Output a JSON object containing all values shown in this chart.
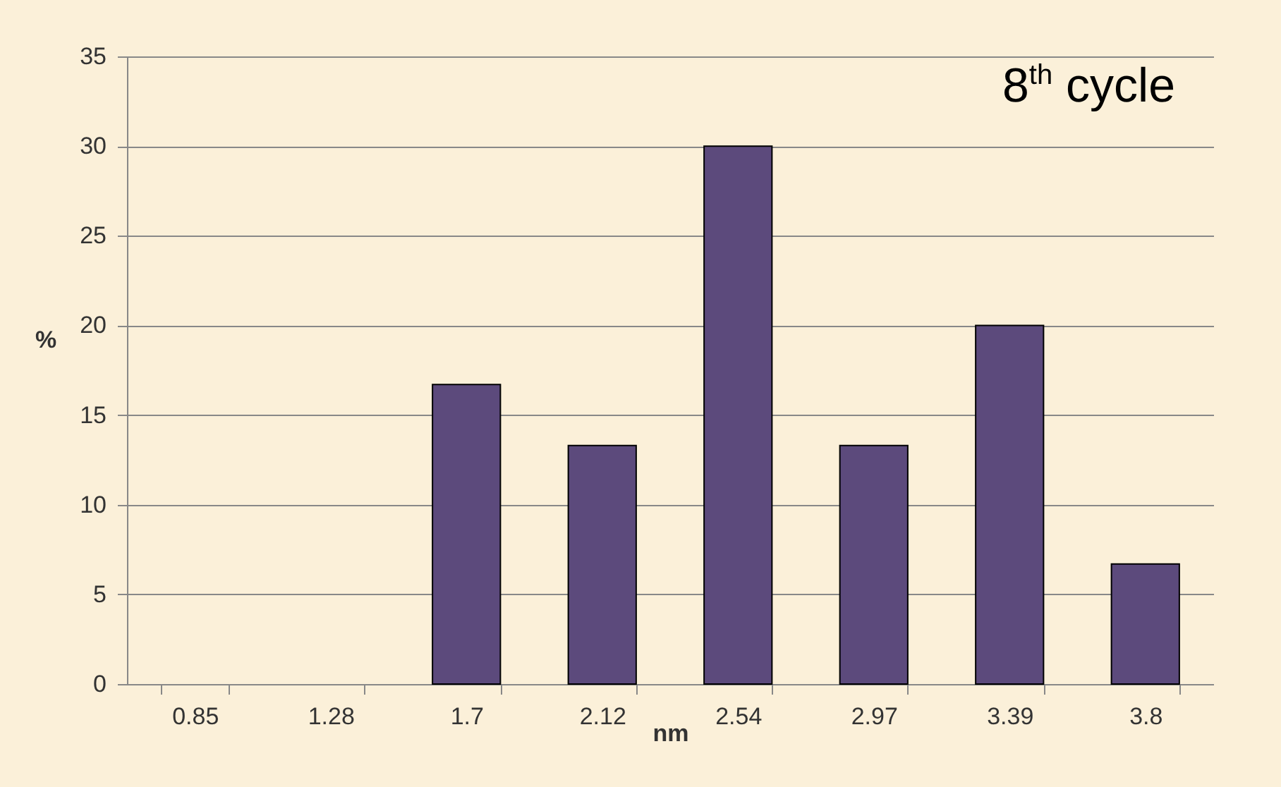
{
  "chart_data": {
    "type": "bar",
    "title": "8$^{th}$ cycle",
    "xlabel": "nm",
    "ylabel": "%",
    "categories": [
      "0.85",
      "1.28",
      "1.7",
      "2.12",
      "2.54",
      "2.97",
      "3.39",
      "3.8"
    ],
    "values": [
      0,
      0,
      16.7,
      13.3,
      30,
      13.3,
      20,
      6.7
    ],
    "color": "#5c4a7c",
    "ylim": [
      0,
      35
    ],
    "yticks": [
      0,
      5,
      10,
      15,
      20,
      25,
      30,
      35
    ],
    "grid": "y"
  }
}
